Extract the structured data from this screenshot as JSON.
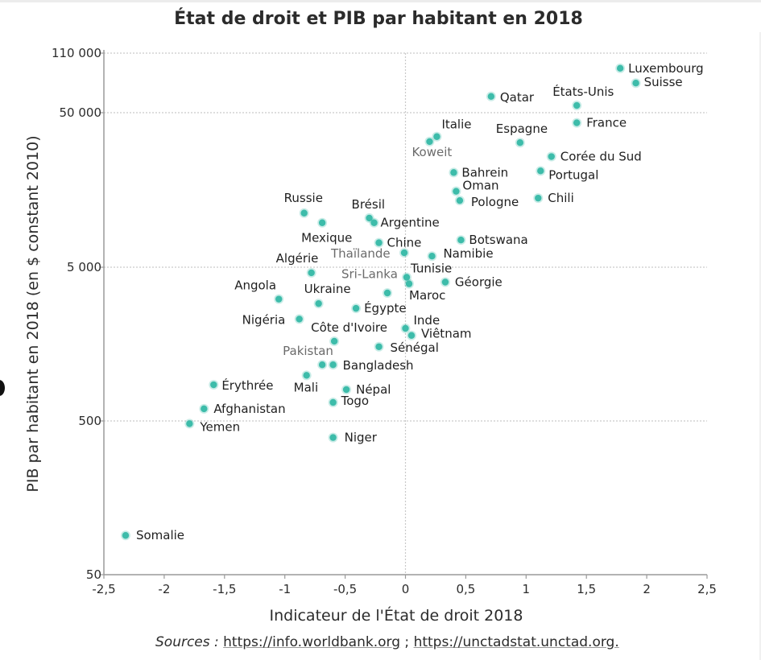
{
  "chart_data": {
    "type": "scatter",
    "title": "État de droit et PIB par habitant en 2018",
    "xlabel": "Indicateur de l'État de droit 2018",
    "ylabel": "PIB par habitant  en 2018 (en $ constant 2010)",
    "xlim": [
      -2.5,
      2.5
    ],
    "ylim": [
      50,
      110000
    ],
    "yscale": "log",
    "x_ticks": [
      -2.5,
      -2,
      -1.5,
      -1,
      -0.5,
      0,
      0.5,
      1,
      1.5,
      2,
      2.5
    ],
    "x_tick_labels": [
      "-2,5",
      "-2",
      "-1,5",
      "-1",
      "-0,5",
      "0",
      "0,5",
      "1",
      "1,5",
      "2",
      "2,5"
    ],
    "y_ticks": [
      50,
      500,
      5000,
      50000,
      110000
    ],
    "y_tick_labels": [
      "50",
      "500",
      "5 000",
      "50 000",
      "110 000"
    ],
    "grid": "dotted horizontal at y ticks, dotted vertical at x=0",
    "marker_color": "#3dbcaa",
    "legend": "none",
    "points": [
      {
        "label": "Luxembourg",
        "x": 1.78,
        "y": 90000
      },
      {
        "label": "Suisse",
        "x": 1.91,
        "y": 74000
      },
      {
        "label": "Qatar",
        "x": 0.71,
        "y": 62000
      },
      {
        "label": "États-Unis",
        "x": 1.42,
        "y": 55000
      },
      {
        "label": "France",
        "x": 1.42,
        "y": 43000
      },
      {
        "label": "Espagne",
        "x": 0.95,
        "y": 32000
      },
      {
        "label": "Italie",
        "x": 0.26,
        "y": 35000
      },
      {
        "label": "Koweit",
        "x": 0.2,
        "y": 32500
      },
      {
        "label": "Corée du Sud",
        "x": 1.21,
        "y": 26000
      },
      {
        "label": "Bahrein",
        "x": 0.4,
        "y": 20500
      },
      {
        "label": "Portugal",
        "x": 1.12,
        "y": 21000
      },
      {
        "label": "Oman",
        "x": 0.42,
        "y": 15500
      },
      {
        "label": "Pologne",
        "x": 0.45,
        "y": 13500
      },
      {
        "label": "Chili",
        "x": 1.1,
        "y": 14000
      },
      {
        "label": "Russie",
        "x": -0.84,
        "y": 11200
      },
      {
        "label": "Mexique",
        "x": -0.69,
        "y": 9700
      },
      {
        "label": "Brésil",
        "x": -0.3,
        "y": 10400
      },
      {
        "label": "Argentine",
        "x": -0.26,
        "y": 9700
      },
      {
        "label": "Chine",
        "x": -0.22,
        "y": 7200
      },
      {
        "label": "Botswana",
        "x": 0.46,
        "y": 7500
      },
      {
        "label": "Thaïlande",
        "x": -0.01,
        "y": 6200
      },
      {
        "label": "Namibie",
        "x": 0.22,
        "y": 5900
      },
      {
        "label": "Algérie",
        "x": -0.78,
        "y": 4600
      },
      {
        "label": "Sri-Lanka",
        "x": 0.01,
        "y": 4300
      },
      {
        "label": "Tunisie",
        "x": 0.03,
        "y": 3900
      },
      {
        "label": "Géorgie",
        "x": 0.33,
        "y": 4000
      },
      {
        "label": "Angola",
        "x": -1.05,
        "y": 3100
      },
      {
        "label": "Ukraine",
        "x": -0.72,
        "y": 2900
      },
      {
        "label": "Maroc",
        "x": -0.15,
        "y": 3400
      },
      {
        "label": "Égypte",
        "x": -0.41,
        "y": 2700
      },
      {
        "label": "Nigéria",
        "x": -0.88,
        "y": 2300
      },
      {
        "label": "Inde",
        "x": 0.0,
        "y": 2000
      },
      {
        "label": "Viêtnam",
        "x": 0.05,
        "y": 1800
      },
      {
        "label": "Côte d'Ivoire",
        "x": -0.59,
        "y": 1650
      },
      {
        "label": "Sénégal",
        "x": -0.22,
        "y": 1520
      },
      {
        "label": "Pakistan",
        "x": -0.69,
        "y": 1160
      },
      {
        "label": "Bangladesh",
        "x": -0.6,
        "y": 1160
      },
      {
        "label": "Mali",
        "x": -0.82,
        "y": 990
      },
      {
        "label": "Érythrée",
        "x": -1.59,
        "y": 860
      },
      {
        "label": "Népal",
        "x": -0.49,
        "y": 800
      },
      {
        "label": "Togo",
        "x": -0.6,
        "y": 660
      },
      {
        "label": "Afghanistan",
        "x": -1.67,
        "y": 600
      },
      {
        "label": "Yemen",
        "x": -1.79,
        "y": 480
      },
      {
        "label": "Niger",
        "x": -0.6,
        "y": 390
      },
      {
        "label": "Somalie",
        "x": -2.32,
        "y": 90
      }
    ]
  },
  "sources": {
    "prefix": "Sources :",
    "link1": "https://info.worldbank.org",
    "separator": " ; ",
    "link2": "https://unctadstat.unctad.org."
  }
}
